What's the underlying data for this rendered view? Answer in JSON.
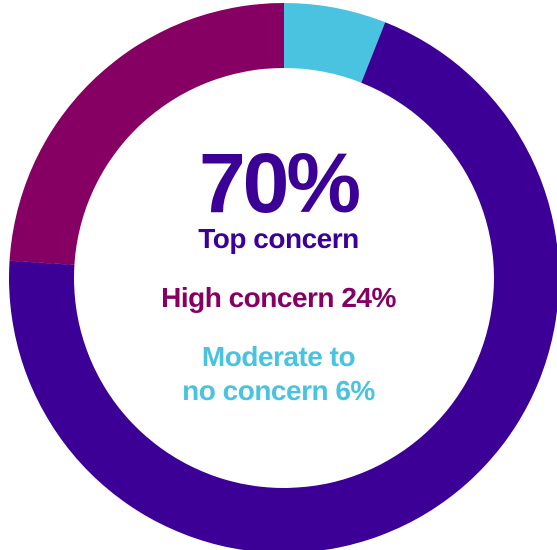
{
  "chart_data": {
    "type": "pie",
    "variant": "donut",
    "slices": [
      {
        "label": "Top concern",
        "value": 70,
        "value_text": "70%",
        "color": "#3c0096"
      },
      {
        "label": "High concern",
        "value": 24,
        "value_text": "24%",
        "color": "#860063"
      },
      {
        "label": "Moderate to no concern",
        "value": 6,
        "value_text": "6%",
        "color": "#4ac3e1"
      }
    ],
    "start": "top",
    "direction": "clockwise",
    "slice_order": [
      "Moderate to no concern",
      "Top concern",
      "High concern"
    ]
  },
  "center": {
    "top_value": "70%",
    "top_label": "Top concern",
    "high_text": "High concern 24%",
    "moderate_line1": "Moderate to",
    "moderate_line2": "no concern 6%"
  }
}
